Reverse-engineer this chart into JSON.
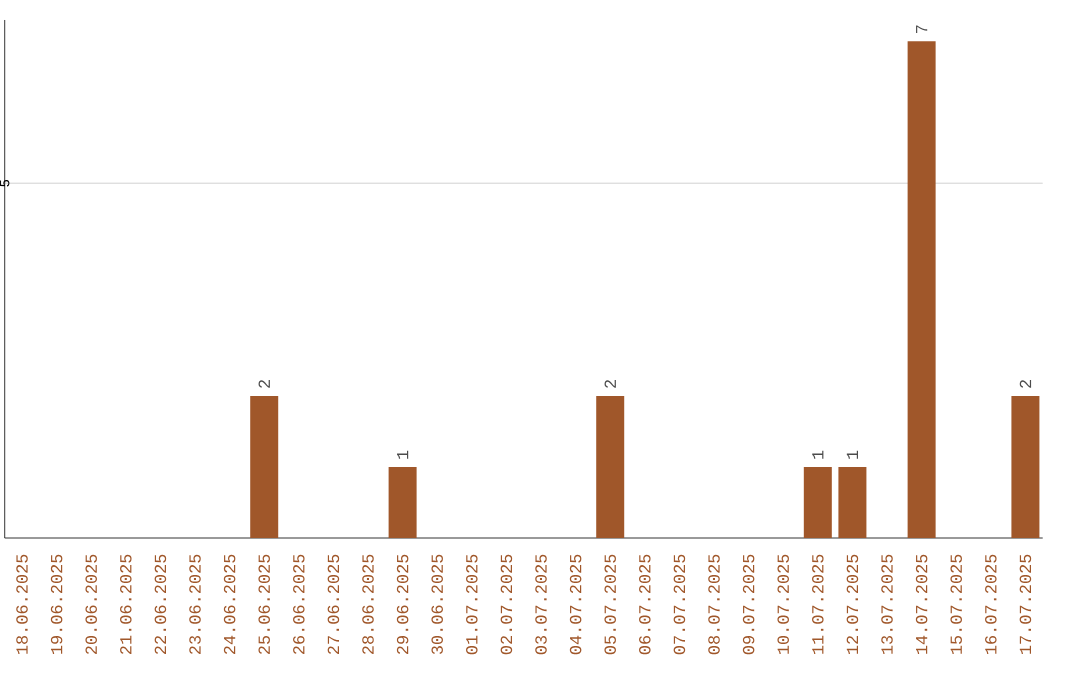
{
  "chart_data": {
    "type": "bar",
    "categories": [
      "18.06.2025",
      "19.06.2025",
      "20.06.2025",
      "21.06.2025",
      "22.06.2025",
      "23.06.2025",
      "24.06.2025",
      "25.06.2025",
      "26.06.2025",
      "27.06.2025",
      "28.06.2025",
      "29.06.2025",
      "30.06.2025",
      "01.07.2025",
      "02.07.2025",
      "03.07.2025",
      "04.07.2025",
      "05.07.2025",
      "06.07.2025",
      "07.07.2025",
      "08.07.2025",
      "09.07.2025",
      "10.07.2025",
      "11.07.2025",
      "12.07.2025",
      "13.07.2025",
      "14.07.2025",
      "15.07.2025",
      "16.07.2025",
      "17.07.2025"
    ],
    "values": [
      0,
      0,
      0,
      0,
      0,
      0,
      0,
      2,
      0,
      0,
      0,
      1,
      0,
      0,
      0,
      0,
      0,
      2,
      0,
      0,
      0,
      0,
      0,
      1,
      1,
      0,
      7,
      0,
      0,
      2
    ],
    "color": "#a0572a",
    "ylim": [
      0,
      7.3
    ],
    "yticks": [
      5
    ],
    "grid": "y",
    "value_labels": [
      null,
      null,
      null,
      null,
      null,
      null,
      null,
      "2",
      null,
      null,
      null,
      "1",
      null,
      null,
      null,
      null,
      null,
      "2",
      null,
      null,
      null,
      null,
      null,
      "1",
      "1",
      null,
      "7",
      null,
      null,
      "2"
    ]
  }
}
